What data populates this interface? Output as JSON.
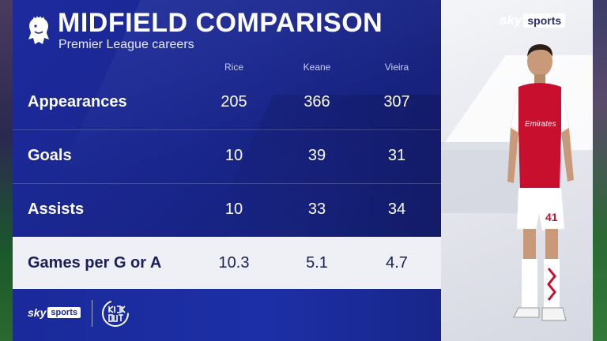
{
  "header": {
    "title": "MIDFIELD COMPARISON",
    "subtitle": "Premier League careers"
  },
  "columns": [
    "Rice",
    "Keane",
    "Vieira"
  ],
  "rows": [
    {
      "label": "Appearances",
      "values": [
        "205",
        "366",
        "307"
      ]
    },
    {
      "label": "Goals",
      "values": [
        "10",
        "39",
        "31"
      ]
    },
    {
      "label": "Assists",
      "values": [
        "10",
        "33",
        "34"
      ]
    },
    {
      "label": "Games per G or A",
      "values": [
        "10.3",
        "5.1",
        "4.7"
      ]
    }
  ],
  "footer": {
    "sky_word": "sky",
    "sports_word": "sports",
    "partner_logo": "KICK OUT"
  },
  "broadcaster": {
    "sky_word": "sky",
    "sports_word": "sports"
  },
  "player_shirt": {
    "sponsor": "Emirates",
    "number": "41"
  },
  "colors": {
    "panel_blue": "#1c2a9e",
    "highlight_row": "#eef0f6",
    "arsenal_red": "#c8102e"
  },
  "icons": {
    "league_logo": "premier-league-lion-icon",
    "partner_logo": "kick-out-logo-icon"
  }
}
